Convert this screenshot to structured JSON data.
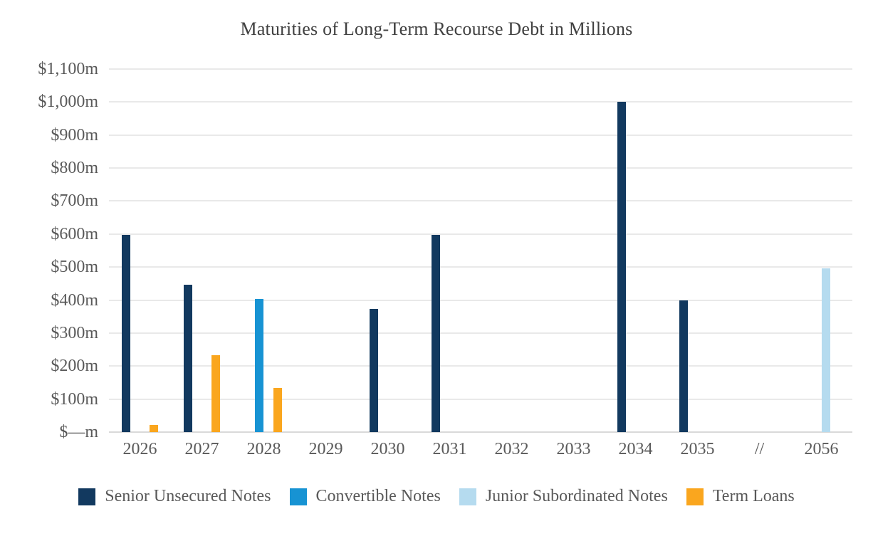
{
  "title": "Maturities of Long-Term Recourse Debt in Millions",
  "chart_data": {
    "type": "bar",
    "title": "Maturities of Long-Term Recourse Debt in Millions",
    "categories": [
      "2026",
      "2027",
      "2028",
      "2029",
      "2030",
      "2031",
      "2032",
      "2033",
      "2034",
      "2035",
      "//",
      "2056"
    ],
    "series": [
      {
        "name": "Senior Unsecured Notes",
        "color": "#12395F",
        "values": [
          598,
          447,
          0,
          0,
          373,
          598,
          0,
          0,
          1000,
          398,
          0,
          0
        ]
      },
      {
        "name": "Convertible Notes",
        "color": "#1793D3",
        "values": [
          0,
          0,
          403,
          0,
          0,
          0,
          0,
          0,
          0,
          0,
          0,
          0
        ]
      },
      {
        "name": "Junior Subordinated Notes",
        "color": "#B5DBEF",
        "values": [
          0,
          0,
          0,
          0,
          0,
          0,
          0,
          0,
          0,
          0,
          0,
          497
        ]
      },
      {
        "name": "Term Loans",
        "color": "#FAA61E",
        "values": [
          21,
          233,
          134,
          0,
          0,
          0,
          0,
          0,
          0,
          0,
          0,
          0
        ]
      }
    ],
    "y_ticks": [
      "$1,100m",
      "$1,000m",
      "$900m",
      "$800m",
      "$700m",
      "$600m",
      "$500m",
      "$400m",
      "$300m",
      "$200m",
      "$100m",
      "$—m"
    ],
    "y_tick_values": [
      1100,
      1000,
      900,
      800,
      700,
      600,
      500,
      400,
      300,
      200,
      100,
      0
    ],
    "ylim": [
      0,
      1100
    ],
    "xlabel": "",
    "ylabel": "",
    "grid": true,
    "gridline_color": "#E9E9E9",
    "baseline_color": "#D9D9D9",
    "axis_text_color": "#595959",
    "title_color": "#404040",
    "background_color": "#FFFFFF",
    "legend_position": "bottom",
    "x_axis_break_label": "//"
  }
}
